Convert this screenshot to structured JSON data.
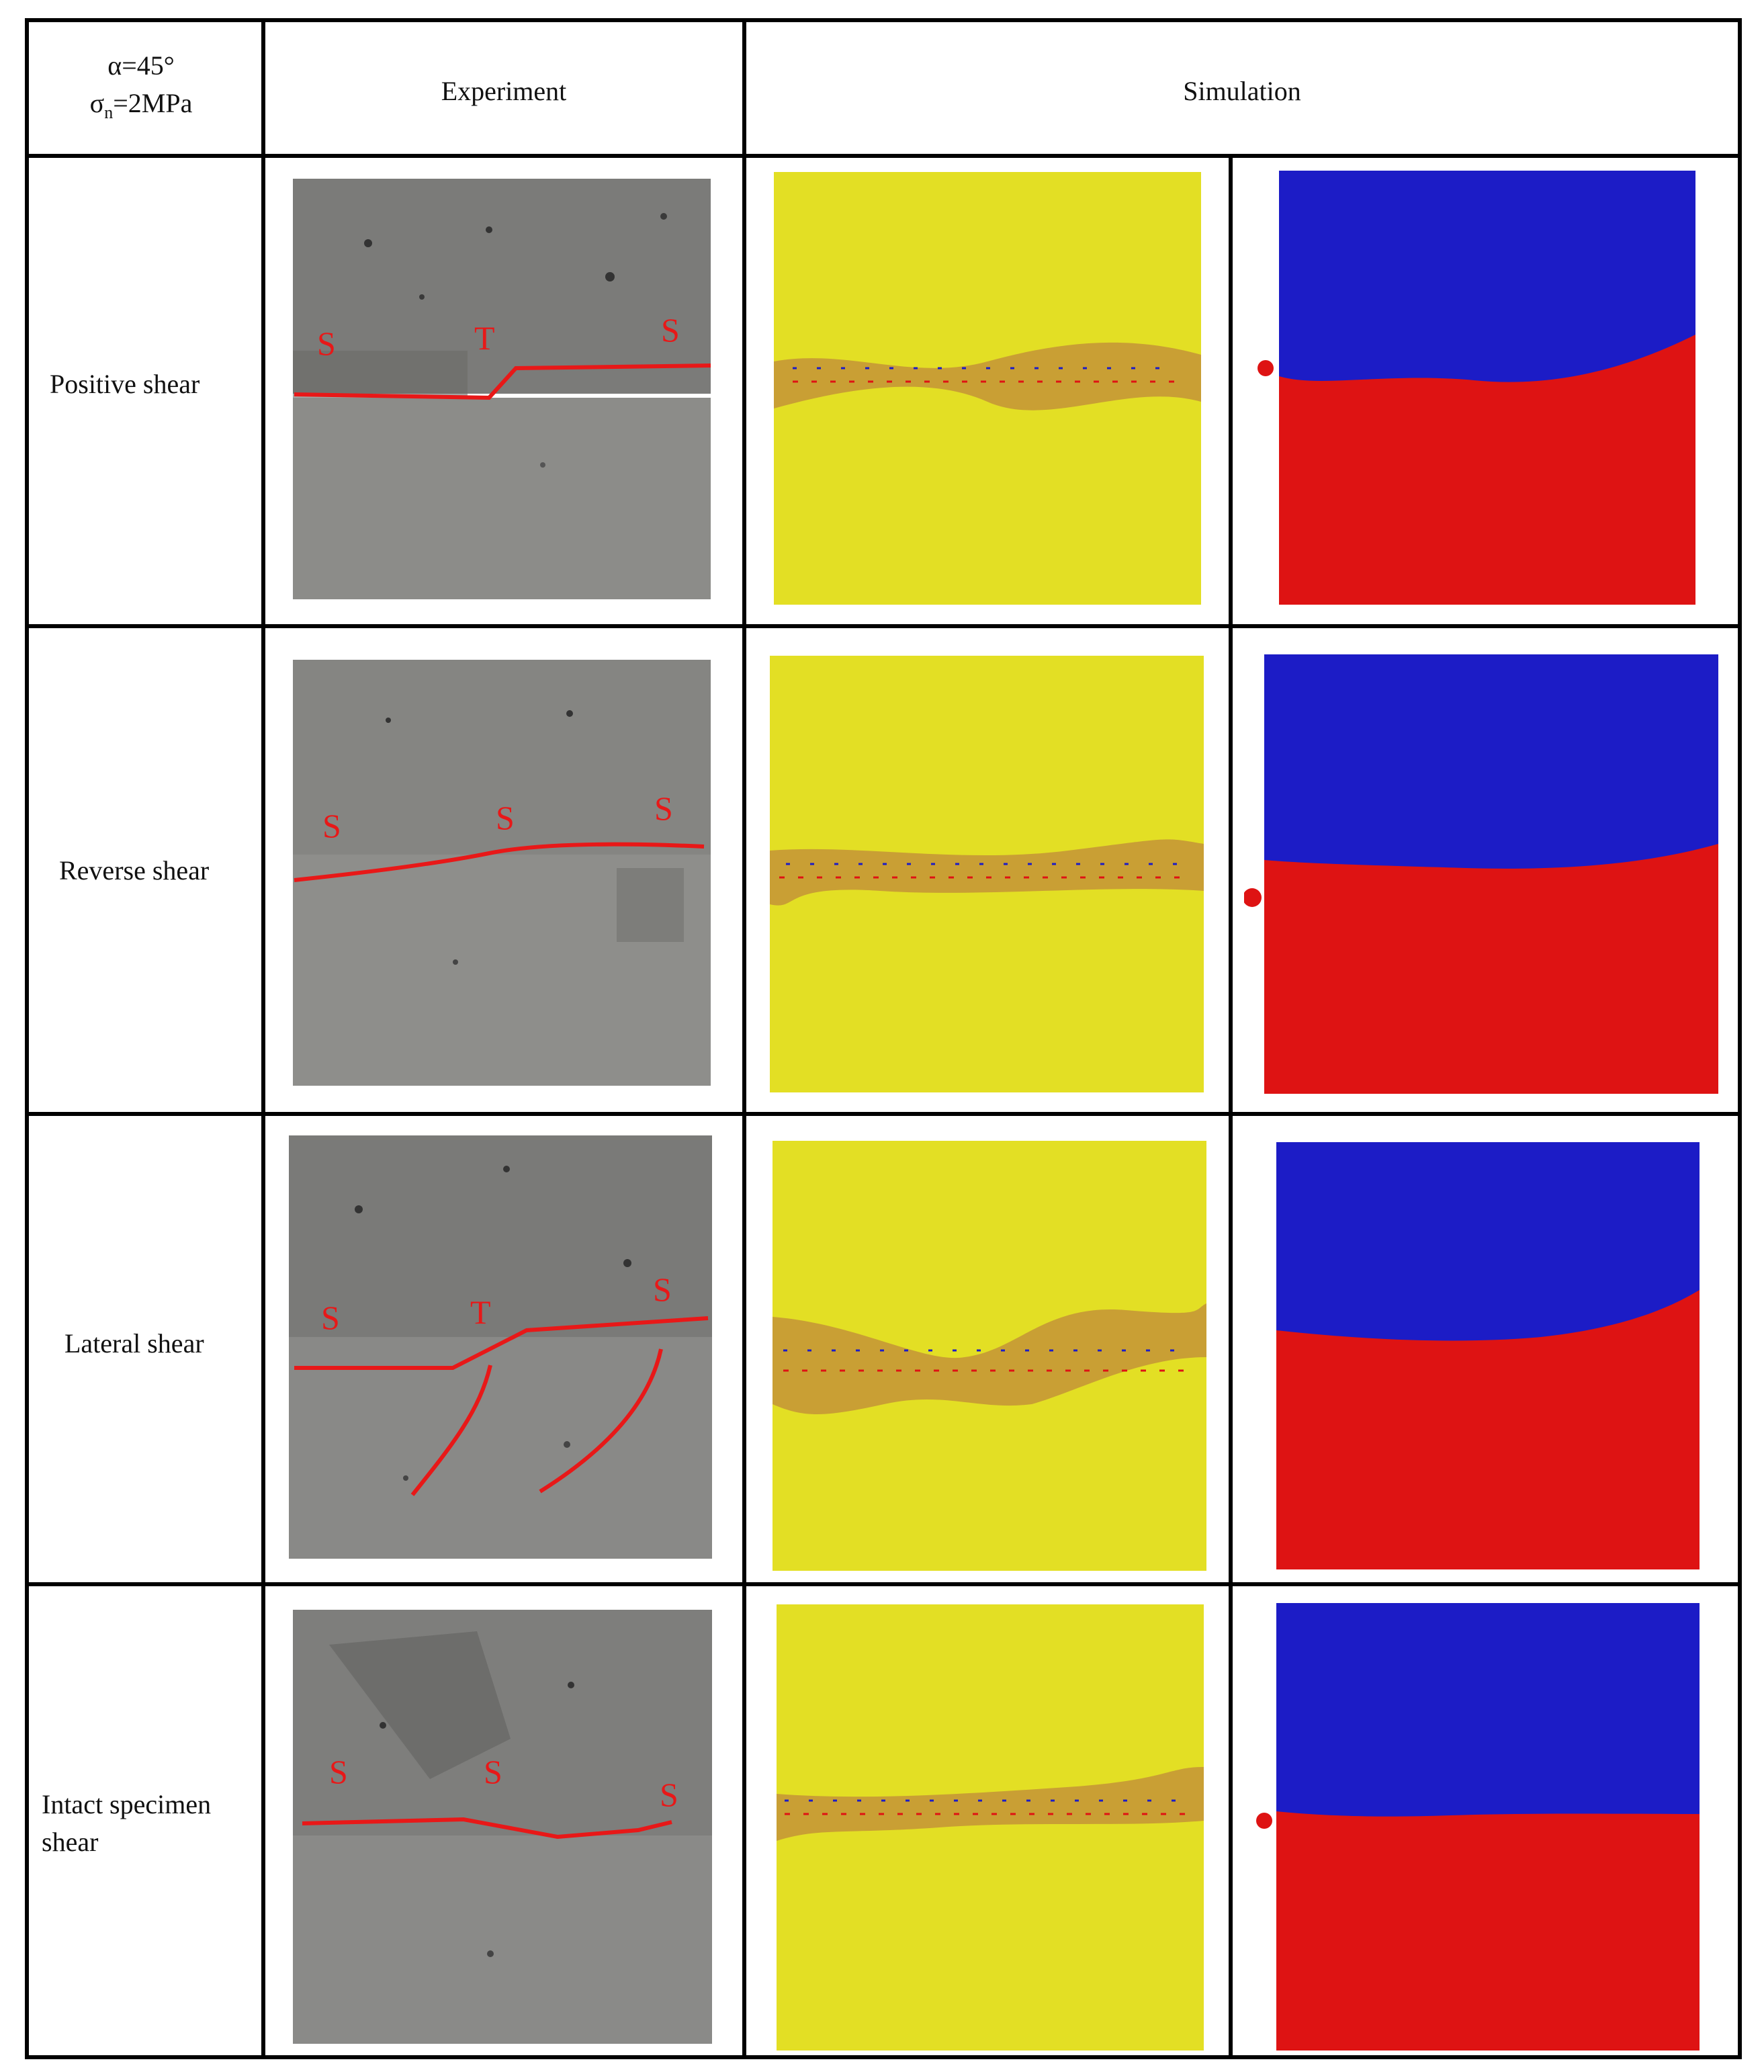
{
  "header": {
    "condition_line1": "α=45°",
    "condition_line2_sigma": "σ",
    "condition_line2_sub": "n",
    "condition_line2_rest": "=2MPa",
    "experiment": "Experiment",
    "simulation": "Simulation"
  },
  "rows": [
    {
      "label_line1": "Positive shear",
      "label_line2": "",
      "markers": [
        "S",
        "T",
        "S"
      ]
    },
    {
      "label_line1": "Reverse shear",
      "label_line2": "",
      "markers": [
        "S",
        "S",
        "S"
      ]
    },
    {
      "label_line1": "Lateral shear",
      "label_line2": "",
      "markers": [
        "S",
        "T",
        "S"
      ]
    },
    {
      "label_line1": "Intact specimen",
      "label_line2": "shear",
      "markers": [
        "S",
        "S",
        "S"
      ]
    }
  ],
  "colors": {
    "concrete_top": "#7d7d7b",
    "concrete_bottom": "#8f8f8c",
    "crack_line": "#e81818",
    "particle_intact": "#e3df24",
    "particle_upper": "#1c1cc6",
    "particle_lower": "#de1313",
    "grid_line": "#000000"
  }
}
